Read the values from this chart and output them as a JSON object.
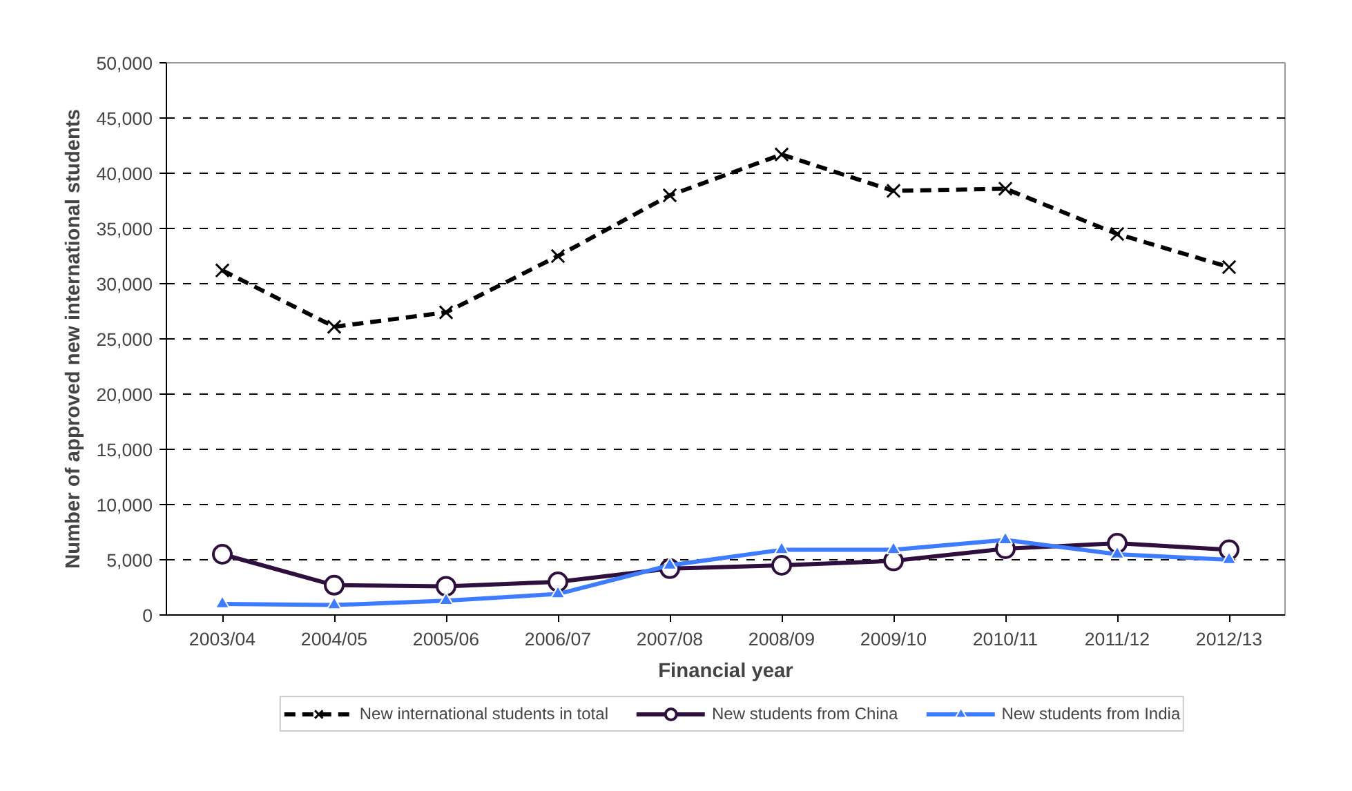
{
  "chart_data": {
    "type": "line",
    "xlabel": "Financial year",
    "ylabel": "Number of approved new international students",
    "categories": [
      "2003/04",
      "2004/05",
      "2005/06",
      "2006/07",
      "2007/08",
      "2008/09",
      "2009/10",
      "2010/11",
      "2011/12",
      "2012/13"
    ],
    "ylim": [
      0,
      50000
    ],
    "yticks": [
      {
        "value": 0,
        "label": "0"
      },
      {
        "value": 5000,
        "label": "5,000"
      },
      {
        "value": 10000,
        "label": "10,000"
      },
      {
        "value": 15000,
        "label": "15,000"
      },
      {
        "value": 20000,
        "label": "20,000"
      },
      {
        "value": 25000,
        "label": "25,000"
      },
      {
        "value": 30000,
        "label": "30,000"
      },
      {
        "value": 35000,
        "label": "35,000"
      },
      {
        "value": 40000,
        "label": "40,000"
      },
      {
        "value": 45000,
        "label": "45,000"
      },
      {
        "value": 50000,
        "label": "50,000"
      }
    ],
    "grid": "y",
    "legend": "bottom",
    "series": [
      {
        "name": "New international students in total",
        "color": "#000000",
        "marker": "cross",
        "line_style": "dashed",
        "values": [
          31200,
          26100,
          27400,
          32500,
          38000,
          41700,
          38400,
          38600,
          34500,
          31500
        ]
      },
      {
        "name": "New students from China",
        "color": "#2e0f3e",
        "marker": "circle",
        "line_style": "solid",
        "values": [
          5500,
          2700,
          2600,
          3000,
          4200,
          4500,
          4900,
          6000,
          6500,
          5900
        ]
      },
      {
        "name": "New students from India",
        "color": "#3d7bff",
        "marker": "triangle",
        "line_style": "solid",
        "values": [
          1000,
          900,
          1300,
          1900,
          4500,
          5900,
          5900,
          6800,
          5500,
          5000
        ]
      }
    ]
  }
}
